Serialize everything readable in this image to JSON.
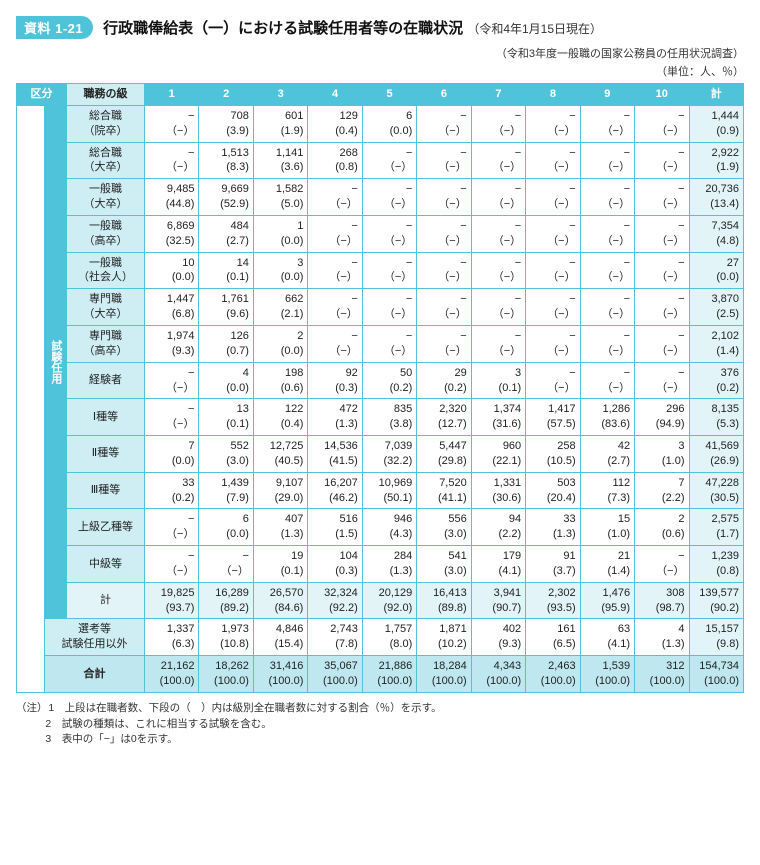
{
  "badge": "資料 1-21",
  "title_main": "行政職俸給表（一）における試験任用者等の在職状況",
  "title_date": "（令和4年1月15日現在）",
  "source": "（令和3年度一般職の国家公務員の任用状況調査）",
  "unit": "（単位：人、％）",
  "header_kubun": "区分",
  "header_grade": "職務の級",
  "grade_cols": [
    "1",
    "2",
    "3",
    "4",
    "5",
    "6",
    "7",
    "8",
    "9",
    "10",
    "計"
  ],
  "side_group_label": "試験任用",
  "rows": [
    {
      "label": "総合職\n（院卒）",
      "cells": [
        "−\n（−）",
        "708\n(3.9)",
        "601\n(1.9)",
        "129\n(0.4)",
        "6\n(0.0)",
        "−\n（−）",
        "−\n（−）",
        "−\n（−）",
        "−\n（−）",
        "−\n（−）",
        "1,444\n(0.9)"
      ]
    },
    {
      "label": "総合職\n（大卒）",
      "cells": [
        "−\n（−）",
        "1,513\n(8.3)",
        "1,141\n(3.6)",
        "268\n(0.8)",
        "−\n（−）",
        "−\n（−）",
        "−\n（−）",
        "−\n（−）",
        "−\n（−）",
        "−\n（−）",
        "2,922\n(1.9)"
      ]
    },
    {
      "label": "一般職\n（大卒）",
      "cells": [
        "9,485\n(44.8)",
        "9,669\n(52.9)",
        "1,582\n(5.0)",
        "−\n（−）",
        "−\n（−）",
        "−\n（−）",
        "−\n（−）",
        "−\n（−）",
        "−\n（−）",
        "−\n（−）",
        "20,736\n(13.4)"
      ]
    },
    {
      "label": "一般職\n（高卒）",
      "cells": [
        "6,869\n(32.5)",
        "484\n(2.7)",
        "1\n(0.0)",
        "−\n（−）",
        "−\n（−）",
        "−\n（−）",
        "−\n（−）",
        "−\n（−）",
        "−\n（−）",
        "−\n（−）",
        "7,354\n(4.8)"
      ]
    },
    {
      "label": "一般職\n（社会人）",
      "cells": [
        "10\n(0.0)",
        "14\n(0.1)",
        "3\n(0.0)",
        "−\n（−）",
        "−\n（−）",
        "−\n（−）",
        "−\n（−）",
        "−\n（−）",
        "−\n（−）",
        "−\n（−）",
        "27\n(0.0)"
      ]
    },
    {
      "label": "専門職\n（大卒）",
      "cells": [
        "1,447\n(6.8)",
        "1,761\n(9.6)",
        "662\n(2.1)",
        "−\n（−）",
        "−\n（−）",
        "−\n（−）",
        "−\n（−）",
        "−\n（−）",
        "−\n（−）",
        "−\n（−）",
        "3,870\n(2.5)"
      ]
    },
    {
      "label": "専門職\n（高卒）",
      "cells": [
        "1,974\n(9.3)",
        "126\n(0.7)",
        "2\n(0.0)",
        "−\n（−）",
        "−\n（−）",
        "−\n（−）",
        "−\n（−）",
        "−\n（−）",
        "−\n（−）",
        "−\n（−）",
        "2,102\n(1.4)"
      ]
    },
    {
      "label": "経験者",
      "cells": [
        "−\n（−）",
        "4\n(0.0)",
        "198\n(0.6)",
        "92\n(0.3)",
        "50\n(0.2)",
        "29\n(0.2)",
        "3\n(0.1)",
        "−\n（−）",
        "−\n（−）",
        "−\n（−）",
        "376\n(0.2)"
      ]
    },
    {
      "label": "Ⅰ種等",
      "cells": [
        "−\n（−）",
        "13\n(0.1)",
        "122\n(0.4)",
        "472\n(1.3)",
        "835\n(3.8)",
        "2,320\n(12.7)",
        "1,374\n(31.6)",
        "1,417\n(57.5)",
        "1,286\n(83.6)",
        "296\n(94.9)",
        "8,135\n(5.3)"
      ]
    },
    {
      "label": "Ⅱ種等",
      "cells": [
        "7\n(0.0)",
        "552\n(3.0)",
        "12,725\n(40.5)",
        "14,536\n(41.5)",
        "7,039\n(32.2)",
        "5,447\n(29.8)",
        "960\n(22.1)",
        "258\n(10.5)",
        "42\n(2.7)",
        "3\n(1.0)",
        "41,569\n(26.9)"
      ]
    },
    {
      "label": "Ⅲ種等",
      "cells": [
        "33\n(0.2)",
        "1,439\n(7.9)",
        "9,107\n(29.0)",
        "16,207\n(46.2)",
        "10,969\n(50.1)",
        "7,520\n(41.1)",
        "1,331\n(30.6)",
        "503\n(20.4)",
        "112\n(7.3)",
        "7\n(2.2)",
        "47,228\n(30.5)"
      ]
    },
    {
      "label": "上級乙種等",
      "cells": [
        "−\n（−）",
        "6\n(0.0)",
        "407\n(1.3)",
        "516\n(1.5)",
        "946\n(4.3)",
        "556\n(3.0)",
        "94\n(2.2)",
        "33\n(1.3)",
        "15\n(1.0)",
        "2\n(0.6)",
        "2,575\n(1.7)"
      ]
    },
    {
      "label": "中級等",
      "cells": [
        "−\n（−）",
        "−\n（−）",
        "19\n(0.1)",
        "104\n(0.3)",
        "284\n(1.3)",
        "541\n(3.0)",
        "179\n(4.1)",
        "91\n(3.7)",
        "21\n(1.4)",
        "−\n（−）",
        "1,239\n(0.8)"
      ]
    }
  ],
  "subtotal_label": "計",
  "subtotal_cells": [
    "19,825\n(93.7)",
    "16,289\n(89.2)",
    "26,570\n(84.6)",
    "32,324\n(92.2)",
    "20,129\n(92.0)",
    "16,413\n(89.8)",
    "3,941\n(90.7)",
    "2,302\n(93.5)",
    "1,476\n(95.9)",
    "308\n(98.7)",
    "139,577\n(90.2)"
  ],
  "other_label": "選考等\n試験任用以外",
  "other_cells": [
    "1,337\n(6.3)",
    "1,973\n(10.8)",
    "4,846\n(15.4)",
    "2,743\n(7.8)",
    "1,757\n(8.0)",
    "1,871\n(10.2)",
    "402\n(9.3)",
    "161\n(6.5)",
    "63\n(4.1)",
    "4\n(1.3)",
    "15,157\n(9.8)"
  ],
  "grand_label": "合計",
  "grand_cells": [
    "21,162\n(100.0)",
    "18,262\n(100.0)",
    "31,416\n(100.0)",
    "35,067\n(100.0)",
    "21,886\n(100.0)",
    "18,284\n(100.0)",
    "4,343\n(100.0)",
    "2,463\n(100.0)",
    "1,539\n(100.0)",
    "312\n(100.0)",
    "154,734\n(100.0)"
  ],
  "notes_label": "（注）",
  "notes": [
    "1　上段は在職者数、下段の（　）内は級別全在職者数に対する割合（％）を示す。",
    "2　試験の種類は、これに相当する試験を含む。",
    "3　表中の「−」は0を示す。"
  ],
  "colors": {
    "accent": "#4fc3d9",
    "row_label_bg": "#cfeef4",
    "subtotal_bg": "#e2f4f8",
    "grand_bg": "#bfe7ef"
  }
}
